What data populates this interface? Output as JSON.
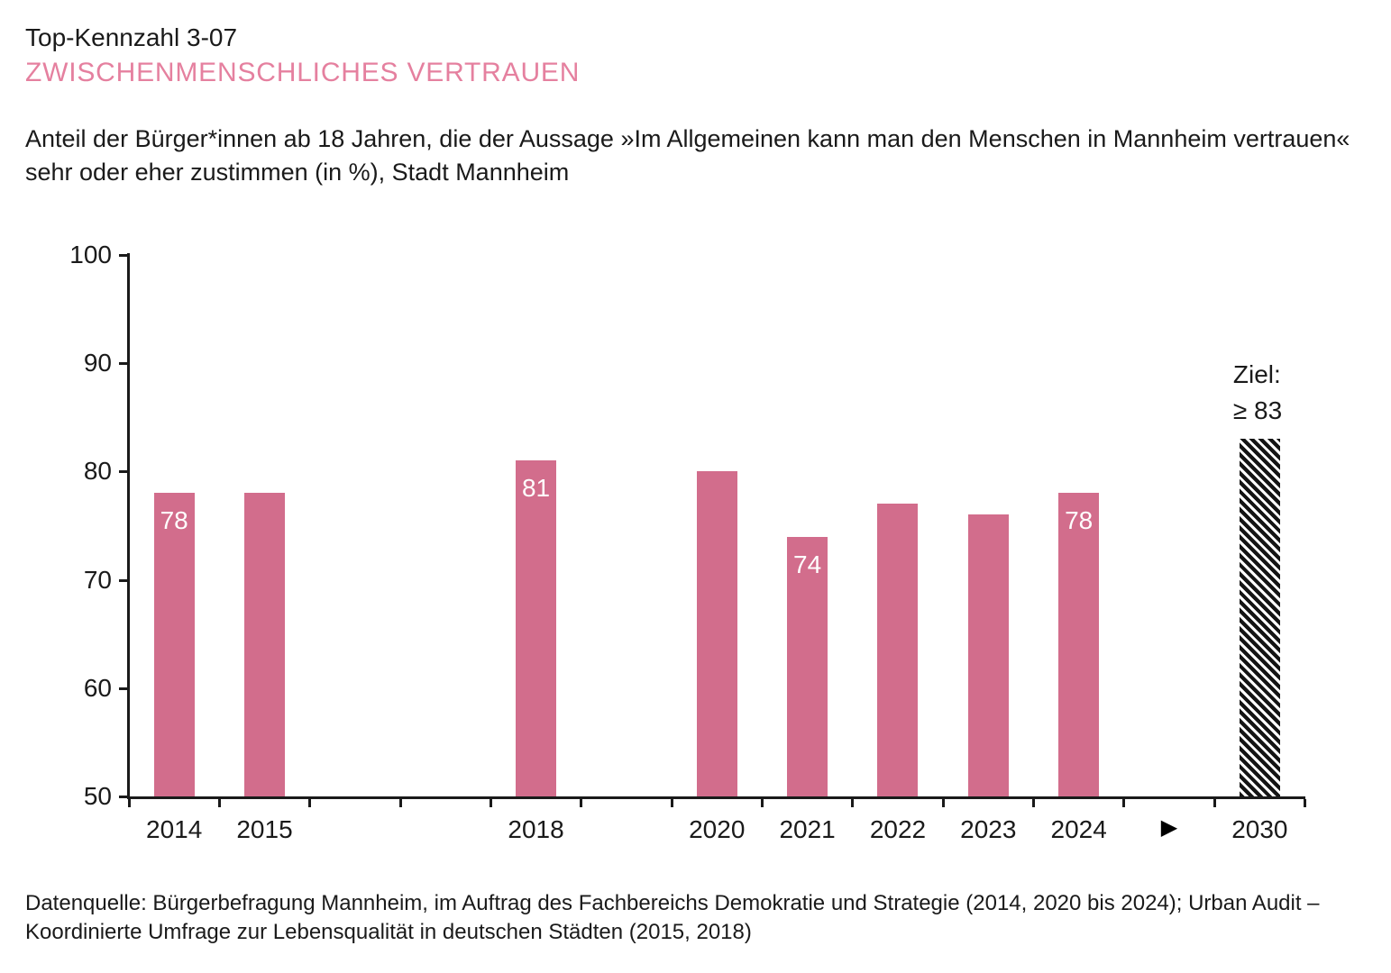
{
  "header": {
    "kicker": "Top-Kennzahl 3-07",
    "title": "ZWISCHENMENSCHLICHES VERTRAUEN",
    "description_line1": "Anteil der Bürger*innen ab 18 Jahren, die der Aussage »Im Allgemeinen kann man den Menschen in Mannheim vertrauen«",
    "description_line2": "sehr oder eher zustimmen (in %), Stadt Mannheim"
  },
  "footer": {
    "source_line1": "Datenquelle: Bürgerbefragung Mannheim, im Auftrag des Fachbereichs Demokratie und Strategie (2014, 2020 bis 2024); Urban Audit –",
    "source_line2": "Koordinierte Umfrage zur Lebensqualität in deutschen Städten (2015, 2018)"
  },
  "colors": {
    "title_pink": "#e5809f",
    "bar_pink": "#d26d8c",
    "axis_black": "#1a1a1a",
    "bar_label_white": "#ffffff",
    "target_hatch_fg": "#141414",
    "target_hatch_bg": "#ffffff"
  },
  "chart_data": {
    "type": "bar",
    "title": "ZWISCHENMENSCHLICHES VERTRAUEN",
    "xlabel": "",
    "ylabel": "",
    "unit": "%",
    "ylim": [
      50,
      100
    ],
    "yticks": [
      50,
      60,
      70,
      80,
      90,
      100
    ],
    "grid": false,
    "legend": "none",
    "arrow_symbol": "▶",
    "target_label_line1": "Ziel:",
    "target_label_line2": "≥ 83",
    "target_value": 83,
    "slots": [
      {
        "x": "2014",
        "value": 78,
        "value_label": "78"
      },
      {
        "x": "2015",
        "value": 78,
        "value_label": ""
      },
      {
        "x": "",
        "value": null,
        "value_label": ""
      },
      {
        "x": "",
        "value": null,
        "value_label": ""
      },
      {
        "x": "2018",
        "value": 81,
        "value_label": "81"
      },
      {
        "x": "",
        "value": null,
        "value_label": ""
      },
      {
        "x": "2020",
        "value": 80,
        "value_label": ""
      },
      {
        "x": "2021",
        "value": 74,
        "value_label": "74"
      },
      {
        "x": "2022",
        "value": 77,
        "value_label": ""
      },
      {
        "x": "2023",
        "value": 76,
        "value_label": ""
      },
      {
        "x": "2024",
        "value": 78,
        "value_label": "78"
      },
      {
        "x": "",
        "value": null,
        "value_label": "",
        "arrow": true
      },
      {
        "x": "2030",
        "value": 83,
        "value_label": "",
        "target": true
      }
    ]
  }
}
